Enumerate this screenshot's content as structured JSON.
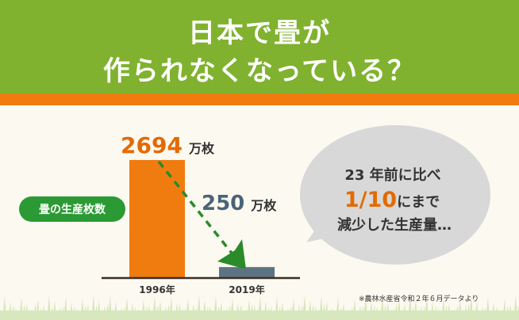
{
  "header": {
    "line1": "日本で畳が",
    "line2": "作られなくなっている？"
  },
  "colors": {
    "header_green": "#80b22f",
    "accent_orange": "#f07c10",
    "bar_orange": "#f07c10",
    "bar_slate": "#5d7382",
    "pill_green": "#2b9a34",
    "arrow_green": "#2b8a2a"
  },
  "pill_label": "畳の生産枚数",
  "bubble": {
    "line1": "23 年前に比べ",
    "line2_big": "1/10",
    "line2_rest": "にまで",
    "line3": "減少した生産量…"
  },
  "source_note": "※農林水産省令和２年６月データより",
  "chart_data": {
    "type": "bar",
    "categories": [
      "1996年",
      "2019年"
    ],
    "values": [
      2694,
      250
    ],
    "value_labels": [
      "2694",
      "250"
    ],
    "unit": "万枚",
    "bar_colors": [
      "#f07c10",
      "#5d7382"
    ],
    "value_label_colors": [
      "#e46a00",
      "#4a6478"
    ],
    "ylim": [
      0,
      2694
    ],
    "trend_arrow": true
  }
}
